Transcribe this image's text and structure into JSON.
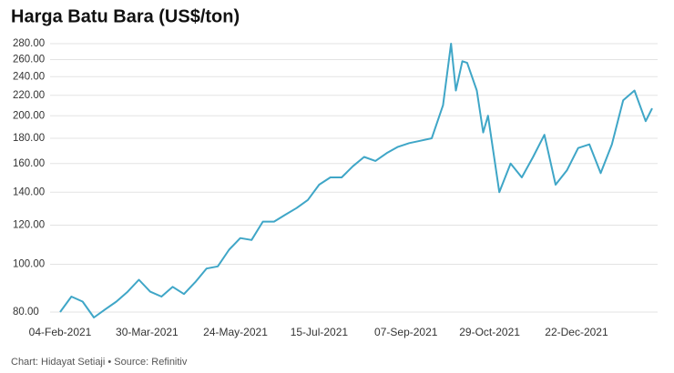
{
  "chart_data": {
    "type": "line",
    "title": "Harga Batu Bara (US$/ton)",
    "source": "Chart: Hidayat Setiaji • Source: Refinitiv",
    "log_scale": true,
    "grid": true,
    "x": [
      "2021-02-04",
      "2021-02-11",
      "2021-02-18",
      "2021-02-25",
      "2021-03-04",
      "2021-03-11",
      "2021-03-18",
      "2021-03-25",
      "2021-04-01",
      "2021-04-08",
      "2021-04-15",
      "2021-04-22",
      "2021-04-29",
      "2021-05-06",
      "2021-05-13",
      "2021-05-20",
      "2021-05-27",
      "2021-06-03",
      "2021-06-10",
      "2021-06-17",
      "2021-06-24",
      "2021-07-01",
      "2021-07-08",
      "2021-07-15",
      "2021-07-22",
      "2021-07-29",
      "2021-08-05",
      "2021-08-12",
      "2021-08-19",
      "2021-08-26",
      "2021-09-02",
      "2021-09-09",
      "2021-09-16",
      "2021-09-23",
      "2021-09-30",
      "2021-10-05",
      "2021-10-08",
      "2021-10-12",
      "2021-10-15",
      "2021-10-21",
      "2021-10-25",
      "2021-10-28",
      "2021-11-04",
      "2021-11-11",
      "2021-11-18",
      "2021-11-25",
      "2021-12-02",
      "2021-12-09",
      "2021-12-16",
      "2021-12-23",
      "2021-12-30",
      "2022-01-06",
      "2022-01-13",
      "2022-01-20",
      "2022-01-27",
      "2022-02-03",
      "2022-02-07"
    ],
    "series": [
      {
        "name": "Harga Batu Bara",
        "color": "#3fa6c7",
        "values": [
          80,
          86,
          84,
          78,
          81,
          84,
          88,
          93,
          88,
          86,
          90,
          87,
          92,
          98,
          99,
          107,
          113,
          112,
          122,
          122,
          126,
          130,
          135,
          145,
          150,
          150,
          158,
          165,
          162,
          168,
          173,
          176,
          178,
          180,
          210,
          280,
          225,
          258,
          256,
          225,
          185,
          200,
          140,
          160,
          150,
          165,
          183,
          145,
          155,
          172,
          175,
          153,
          175,
          215,
          225,
          195,
          207
        ]
      }
    ],
    "xlim": [
      "2021-02-04",
      "2022-02-07"
    ],
    "xticks": [
      {
        "value": "2021-02-04",
        "label": "04-Feb-2021"
      },
      {
        "value": "2021-03-30",
        "label": "30-Mar-2021"
      },
      {
        "value": "2021-05-24",
        "label": "24-May-2021"
      },
      {
        "value": "2021-07-15",
        "label": "15-Jul-2021"
      },
      {
        "value": "2021-09-07",
        "label": "07-Sep-2021"
      },
      {
        "value": "2021-10-29",
        "label": "29-Oct-2021"
      },
      {
        "value": "2021-12-22",
        "label": "22-Dec-2021"
      }
    ],
    "ylim": [
      80,
      280
    ],
    "yticks": [
      {
        "value": 80,
        "label": "80.00"
      },
      {
        "value": 100,
        "label": "100.00"
      },
      {
        "value": 120,
        "label": "120.00"
      },
      {
        "value": 140,
        "label": "140.00"
      },
      {
        "value": 160,
        "label": "160.00"
      },
      {
        "value": 180,
        "label": "180.00"
      },
      {
        "value": 200,
        "label": "200.00"
      },
      {
        "value": 220,
        "label": "220.00"
      },
      {
        "value": 240,
        "label": "240.00"
      },
      {
        "value": 260,
        "label": "260.00"
      },
      {
        "value": 280,
        "label": "280.00"
      }
    ]
  }
}
